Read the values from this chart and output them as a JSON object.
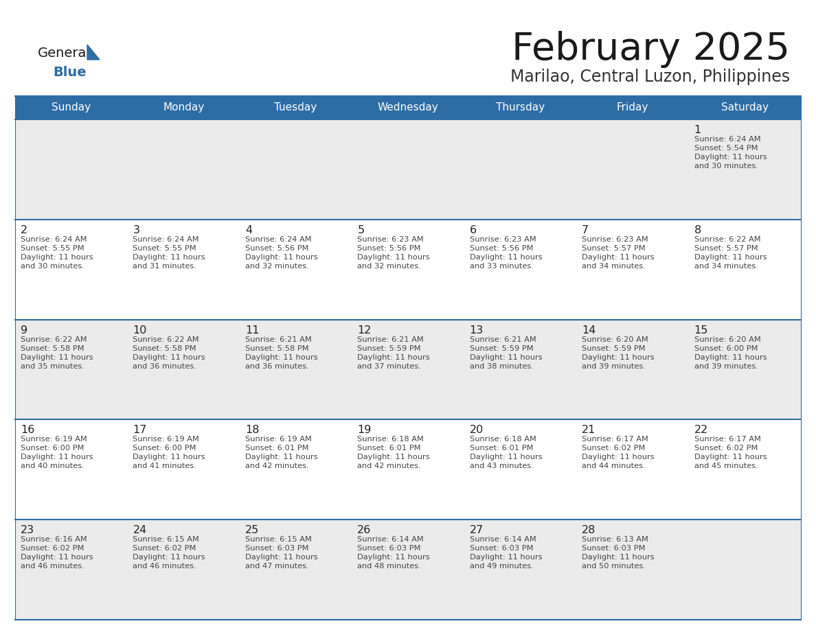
{
  "title": "February 2025",
  "subtitle": "Marilao, Central Luzon, Philippines",
  "header_bg": "#2E6DA4",
  "header_text_color": "#FFFFFF",
  "cell_bg_odd": "#EBEBEB",
  "cell_bg_even": "#FFFFFF",
  "text_color": "#444444",
  "day_num_color": "#222222",
  "days_of_week": [
    "Sunday",
    "Monday",
    "Tuesday",
    "Wednesday",
    "Thursday",
    "Friday",
    "Saturday"
  ],
  "calendar_data": [
    [
      {
        "day": "",
        "sunrise": "",
        "sunset": "",
        "daylight": ""
      },
      {
        "day": "",
        "sunrise": "",
        "sunset": "",
        "daylight": ""
      },
      {
        "day": "",
        "sunrise": "",
        "sunset": "",
        "daylight": ""
      },
      {
        "day": "",
        "sunrise": "",
        "sunset": "",
        "daylight": ""
      },
      {
        "day": "",
        "sunrise": "",
        "sunset": "",
        "daylight": ""
      },
      {
        "day": "",
        "sunrise": "",
        "sunset": "",
        "daylight": ""
      },
      {
        "day": "1",
        "sunrise": "Sunrise: 6:24 AM",
        "sunset": "Sunset: 5:54 PM",
        "daylight": "Daylight: 11 hours\nand 30 minutes."
      }
    ],
    [
      {
        "day": "2",
        "sunrise": "Sunrise: 6:24 AM",
        "sunset": "Sunset: 5:55 PM",
        "daylight": "Daylight: 11 hours\nand 30 minutes."
      },
      {
        "day": "3",
        "sunrise": "Sunrise: 6:24 AM",
        "sunset": "Sunset: 5:55 PM",
        "daylight": "Daylight: 11 hours\nand 31 minutes."
      },
      {
        "day": "4",
        "sunrise": "Sunrise: 6:24 AM",
        "sunset": "Sunset: 5:56 PM",
        "daylight": "Daylight: 11 hours\nand 32 minutes."
      },
      {
        "day": "5",
        "sunrise": "Sunrise: 6:23 AM",
        "sunset": "Sunset: 5:56 PM",
        "daylight": "Daylight: 11 hours\nand 32 minutes."
      },
      {
        "day": "6",
        "sunrise": "Sunrise: 6:23 AM",
        "sunset": "Sunset: 5:56 PM",
        "daylight": "Daylight: 11 hours\nand 33 minutes."
      },
      {
        "day": "7",
        "sunrise": "Sunrise: 6:23 AM",
        "sunset": "Sunset: 5:57 PM",
        "daylight": "Daylight: 11 hours\nand 34 minutes."
      },
      {
        "day": "8",
        "sunrise": "Sunrise: 6:22 AM",
        "sunset": "Sunset: 5:57 PM",
        "daylight": "Daylight: 11 hours\nand 34 minutes."
      }
    ],
    [
      {
        "day": "9",
        "sunrise": "Sunrise: 6:22 AM",
        "sunset": "Sunset: 5:58 PM",
        "daylight": "Daylight: 11 hours\nand 35 minutes."
      },
      {
        "day": "10",
        "sunrise": "Sunrise: 6:22 AM",
        "sunset": "Sunset: 5:58 PM",
        "daylight": "Daylight: 11 hours\nand 36 minutes."
      },
      {
        "day": "11",
        "sunrise": "Sunrise: 6:21 AM",
        "sunset": "Sunset: 5:58 PM",
        "daylight": "Daylight: 11 hours\nand 36 minutes."
      },
      {
        "day": "12",
        "sunrise": "Sunrise: 6:21 AM",
        "sunset": "Sunset: 5:59 PM",
        "daylight": "Daylight: 11 hours\nand 37 minutes."
      },
      {
        "day": "13",
        "sunrise": "Sunrise: 6:21 AM",
        "sunset": "Sunset: 5:59 PM",
        "daylight": "Daylight: 11 hours\nand 38 minutes."
      },
      {
        "day": "14",
        "sunrise": "Sunrise: 6:20 AM",
        "sunset": "Sunset: 5:59 PM",
        "daylight": "Daylight: 11 hours\nand 39 minutes."
      },
      {
        "day": "15",
        "sunrise": "Sunrise: 6:20 AM",
        "sunset": "Sunset: 6:00 PM",
        "daylight": "Daylight: 11 hours\nand 39 minutes."
      }
    ],
    [
      {
        "day": "16",
        "sunrise": "Sunrise: 6:19 AM",
        "sunset": "Sunset: 6:00 PM",
        "daylight": "Daylight: 11 hours\nand 40 minutes."
      },
      {
        "day": "17",
        "sunrise": "Sunrise: 6:19 AM",
        "sunset": "Sunset: 6:00 PM",
        "daylight": "Daylight: 11 hours\nand 41 minutes."
      },
      {
        "day": "18",
        "sunrise": "Sunrise: 6:19 AM",
        "sunset": "Sunset: 6:01 PM",
        "daylight": "Daylight: 11 hours\nand 42 minutes."
      },
      {
        "day": "19",
        "sunrise": "Sunrise: 6:18 AM",
        "sunset": "Sunset: 6:01 PM",
        "daylight": "Daylight: 11 hours\nand 42 minutes."
      },
      {
        "day": "20",
        "sunrise": "Sunrise: 6:18 AM",
        "sunset": "Sunset: 6:01 PM",
        "daylight": "Daylight: 11 hours\nand 43 minutes."
      },
      {
        "day": "21",
        "sunrise": "Sunrise: 6:17 AM",
        "sunset": "Sunset: 6:02 PM",
        "daylight": "Daylight: 11 hours\nand 44 minutes."
      },
      {
        "day": "22",
        "sunrise": "Sunrise: 6:17 AM",
        "sunset": "Sunset: 6:02 PM",
        "daylight": "Daylight: 11 hours\nand 45 minutes."
      }
    ],
    [
      {
        "day": "23",
        "sunrise": "Sunrise: 6:16 AM",
        "sunset": "Sunset: 6:02 PM",
        "daylight": "Daylight: 11 hours\nand 46 minutes."
      },
      {
        "day": "24",
        "sunrise": "Sunrise: 6:15 AM",
        "sunset": "Sunset: 6:02 PM",
        "daylight": "Daylight: 11 hours\nand 46 minutes."
      },
      {
        "day": "25",
        "sunrise": "Sunrise: 6:15 AM",
        "sunset": "Sunset: 6:03 PM",
        "daylight": "Daylight: 11 hours\nand 47 minutes."
      },
      {
        "day": "26",
        "sunrise": "Sunrise: 6:14 AM",
        "sunset": "Sunset: 6:03 PM",
        "daylight": "Daylight: 11 hours\nand 48 minutes."
      },
      {
        "day": "27",
        "sunrise": "Sunrise: 6:14 AM",
        "sunset": "Sunset: 6:03 PM",
        "daylight": "Daylight: 11 hours\nand 49 minutes."
      },
      {
        "day": "28",
        "sunrise": "Sunrise: 6:13 AM",
        "sunset": "Sunset: 6:03 PM",
        "daylight": "Daylight: 11 hours\nand 50 minutes."
      },
      {
        "day": "",
        "sunrise": "",
        "sunset": "",
        "daylight": ""
      }
    ]
  ],
  "fig_width": 11.88,
  "fig_height": 9.18,
  "dpi": 100
}
